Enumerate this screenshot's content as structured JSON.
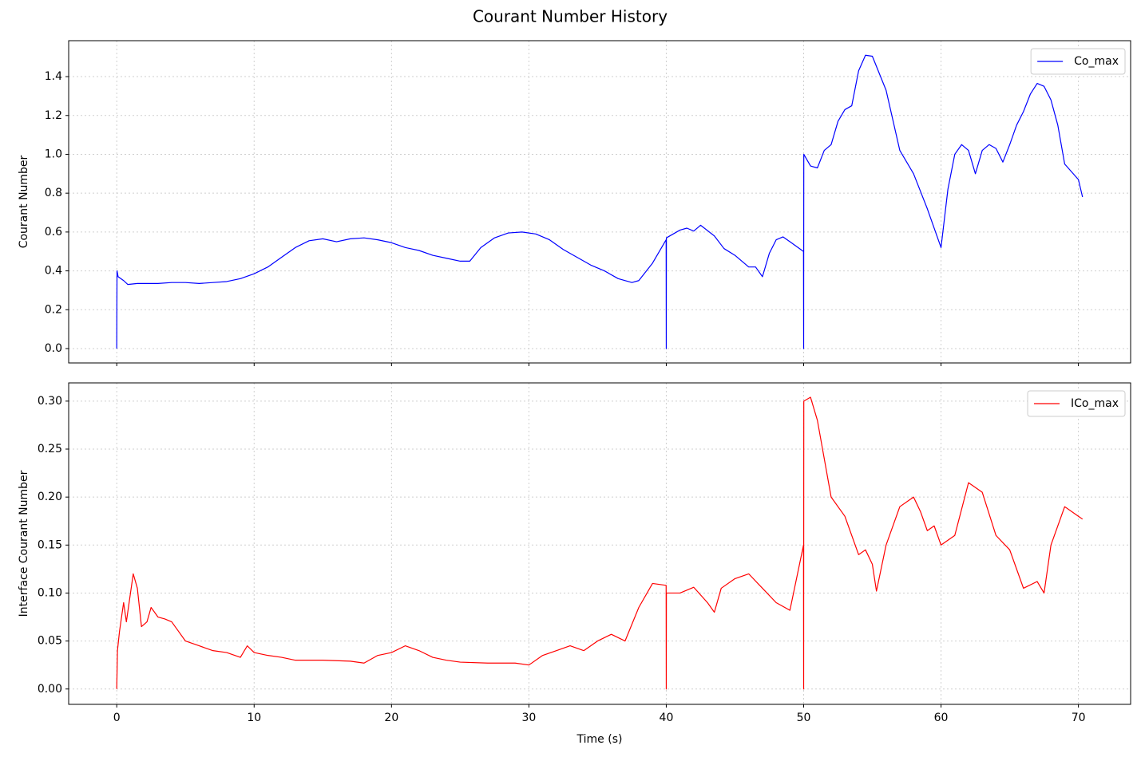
{
  "title": "Courant Number History",
  "chart_data": [
    {
      "type": "line",
      "ylabel": "Courant Number",
      "xlim": [
        -3.5,
        73.8
      ],
      "ylim": [
        -0.074,
        1.585
      ],
      "yticks": [
        {
          "value": 0,
          "label": "0.0"
        },
        0.2,
        0.4,
        0.6,
        0.8,
        {
          "value": 1,
          "label": "1.0"
        },
        1.2,
        1.4
      ],
      "grid": true,
      "legend": "upper right",
      "x": [
        0,
        0.02,
        0.1,
        0.5,
        0.8,
        1.5,
        3,
        4,
        5,
        6,
        7,
        8,
        9,
        10,
        11,
        12,
        13,
        14,
        15,
        16,
        17,
        18,
        19,
        20,
        21,
        22,
        23,
        24,
        25,
        25.7,
        26.5,
        27.5,
        28.5,
        29.5,
        30.5,
        31.5,
        32.5,
        33.5,
        34.5,
        35.5,
        36.5,
        37.5,
        38,
        39,
        39.99,
        40,
        40.01,
        41,
        41.5,
        42,
        42.5,
        43.5,
        44.2,
        45,
        46,
        46.5,
        47,
        47.5,
        48,
        48.5,
        49,
        49.99,
        50,
        50.01,
        50.5,
        51,
        51.5,
        52,
        52.5,
        53,
        53.5,
        54,
        54.5,
        55,
        56,
        57,
        58,
        59,
        60,
        60.5,
        61,
        61.5,
        62,
        62.5,
        63,
        63.5,
        64,
        64.5,
        65,
        65.5,
        66,
        66.5,
        67,
        67.5,
        68,
        68.5,
        69,
        70,
        70.3
      ],
      "series": [
        {
          "name": "Co_max",
          "color": "#0000ff",
          "values": [
            0,
            0.4,
            0.37,
            0.35,
            0.33,
            0.335,
            0.335,
            0.34,
            0.34,
            0.335,
            0.34,
            0.345,
            0.36,
            0.385,
            0.42,
            0.47,
            0.52,
            0.555,
            0.565,
            0.55,
            0.565,
            0.57,
            0.56,
            0.545,
            0.52,
            0.505,
            0.48,
            0.465,
            0.45,
            0.45,
            0.52,
            0.57,
            0.595,
            0.6,
            0.59,
            0.56,
            0.51,
            0.47,
            0.43,
            0.4,
            0.36,
            0.34,
            0.35,
            0.44,
            0.56,
            0,
            0.57,
            0.61,
            0.62,
            0.605,
            0.635,
            0.58,
            0.515,
            0.48,
            0.42,
            0.42,
            0.37,
            0.49,
            0.56,
            0.575,
            0.55,
            0.5,
            0,
            1.0,
            0.94,
            0.93,
            1.02,
            1.05,
            1.17,
            1.23,
            1.25,
            1.43,
            1.51,
            1.505,
            1.33,
            1.02,
            0.9,
            0.72,
            0.52,
            0.82,
            1.0,
            1.05,
            1.02,
            0.9,
            1.02,
            1.05,
            1.03,
            0.96,
            1.05,
            1.15,
            1.22,
            1.31,
            1.365,
            1.35,
            1.28,
            1.15,
            0.95,
            0.87,
            0.78
          ]
        }
      ]
    },
    {
      "type": "line",
      "xlabel": "Time (s)",
      "ylabel": "Interface Courant Number",
      "xlim": [
        -3.5,
        73.8
      ],
      "ylim": [
        -0.016,
        0.319
      ],
      "xticks": [
        0,
        10,
        20,
        30,
        40,
        50,
        60,
        70
      ],
      "yticks": [
        {
          "value": 0,
          "label": "0.00"
        },
        0.05,
        {
          "value": 0.1,
          "label": "0.10"
        },
        0.15,
        {
          "value": 0.2,
          "label": "0.20"
        },
        0.25,
        {
          "value": 0.3,
          "label": "0.30"
        }
      ],
      "grid": true,
      "legend": "upper right",
      "x": [
        0,
        0.05,
        0.2,
        0.5,
        0.7,
        1.0,
        1.2,
        1.5,
        1.8,
        2.2,
        2.5,
        3,
        3.5,
        4,
        4.5,
        5,
        6,
        7,
        8,
        9,
        9.5,
        10,
        11,
        12,
        13,
        15,
        17,
        18,
        19,
        20,
        21,
        22,
        23,
        24,
        25,
        27,
        29,
        30,
        31,
        32,
        33,
        34,
        35,
        36,
        37,
        38,
        39,
        39.99,
        40,
        40.01,
        41,
        42,
        43,
        43.5,
        44,
        45,
        46,
        47,
        48,
        49,
        49.99,
        50,
        50.01,
        50.5,
        51,
        52,
        53,
        54,
        54.5,
        55,
        55.3,
        56,
        57,
        58,
        58.5,
        59,
        59.5,
        60,
        61,
        62,
        63,
        64,
        65,
        66,
        67,
        67.5,
        68,
        69,
        70,
        70.3
      ],
      "series": [
        {
          "name": "ICo_max",
          "color": "#ff0000",
          "values": [
            0,
            0.04,
            0.06,
            0.09,
            0.07,
            0.1,
            0.12,
            0.105,
            0.065,
            0.07,
            0.085,
            0.075,
            0.073,
            0.07,
            0.06,
            0.05,
            0.045,
            0.04,
            0.038,
            0.033,
            0.045,
            0.038,
            0.035,
            0.033,
            0.03,
            0.03,
            0.029,
            0.027,
            0.035,
            0.038,
            0.045,
            0.04,
            0.033,
            0.03,
            0.028,
            0.027,
            0.027,
            0.025,
            0.035,
            0.04,
            0.045,
            0.04,
            0.05,
            0.057,
            0.05,
            0.085,
            0.11,
            0.108,
            0,
            0.1,
            0.1,
            0.106,
            0.09,
            0.08,
            0.105,
            0.115,
            0.12,
            0.105,
            0.09,
            0.082,
            0.15,
            0,
            0.3,
            0.304,
            0.28,
            0.2,
            0.18,
            0.14,
            0.145,
            0.13,
            0.102,
            0.15,
            0.19,
            0.2,
            0.185,
            0.165,
            0.17,
            0.15,
            0.16,
            0.215,
            0.205,
            0.16,
            0.145,
            0.105,
            0.112,
            0.1,
            0.15,
            0.19,
            0.18,
            0.177
          ]
        }
      ]
    }
  ]
}
